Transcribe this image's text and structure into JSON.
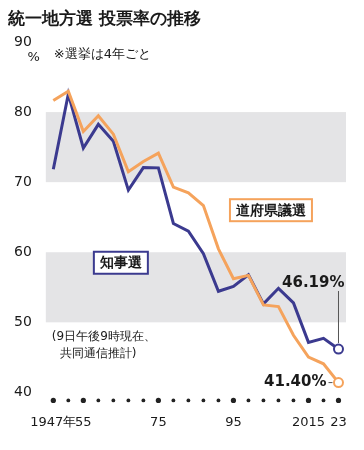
{
  "chart_data": {
    "type": "line",
    "title": "統一地方選 投票率の推移",
    "ylabel": "%",
    "annotations": [
      "※選挙は4年ごと",
      "(9日午後9時現在、共同通信推計)"
    ],
    "categories": [
      "1947年",
      null,
      "55",
      null,
      null,
      null,
      null,
      "75",
      null,
      null,
      null,
      null,
      "95",
      null,
      null,
      null,
      null,
      "2015",
      null,
      "23"
    ],
    "series": [
      {
        "name": "知事選",
        "color": "#3b3a8f",
        "values": [
          71.85,
          82.58,
          74.85,
          78.25,
          75.84,
          68.86,
          72.08,
          72.04,
          64.1,
          63.0,
          59.8,
          54.43,
          55.12,
          56.78,
          52.63,
          54.85,
          52.77,
          47.14,
          47.72,
          46.19
        ],
        "value_labels": [
          null,
          null,
          null,
          null,
          null,
          null,
          null,
          null,
          null,
          null,
          null,
          null,
          null,
          null,
          null,
          null,
          null,
          null,
          null,
          "46.19%"
        ]
      },
      {
        "name": "道府県議選",
        "color": "#f5a35c",
        "values": [
          81.65,
          82.99,
          77.24,
          79.48,
          76.85,
          71.48,
          72.94,
          74.13,
          69.3,
          68.47,
          66.66,
          60.49,
          56.23,
          56.7,
          52.48,
          52.25,
          48.15,
          45.05,
          44.08,
          41.4
        ],
        "value_labels": [
          null,
          null,
          null,
          null,
          null,
          null,
          null,
          null,
          null,
          null,
          null,
          null,
          null,
          null,
          null,
          null,
          null,
          null,
          null,
          "41.40%"
        ]
      }
    ],
    "ylim": [
      40,
      90
    ],
    "yticks": [
      40,
      50,
      60,
      70,
      80,
      90
    ],
    "grid": true
  }
}
